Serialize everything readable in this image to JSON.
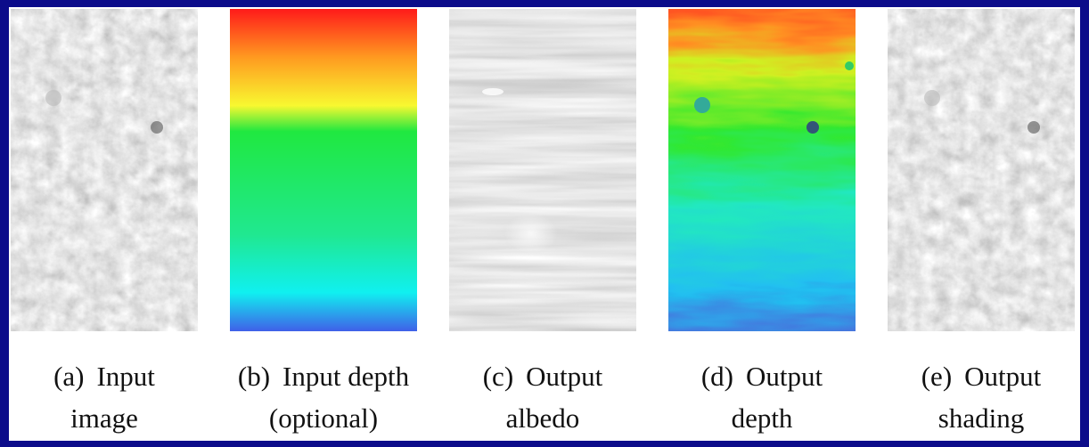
{
  "panels": [
    {
      "label": "(a)",
      "lines": [
        "Input",
        "image"
      ]
    },
    {
      "label": "(b)",
      "lines": [
        "Input depth",
        "(optional)"
      ]
    },
    {
      "label": "(c)",
      "lines": [
        "Output",
        "albedo"
      ]
    },
    {
      "label": "(d)",
      "lines": [
        "Output",
        "depth"
      ]
    },
    {
      "label": "(e)",
      "lines": [
        "Output",
        "shading"
      ]
    }
  ]
}
